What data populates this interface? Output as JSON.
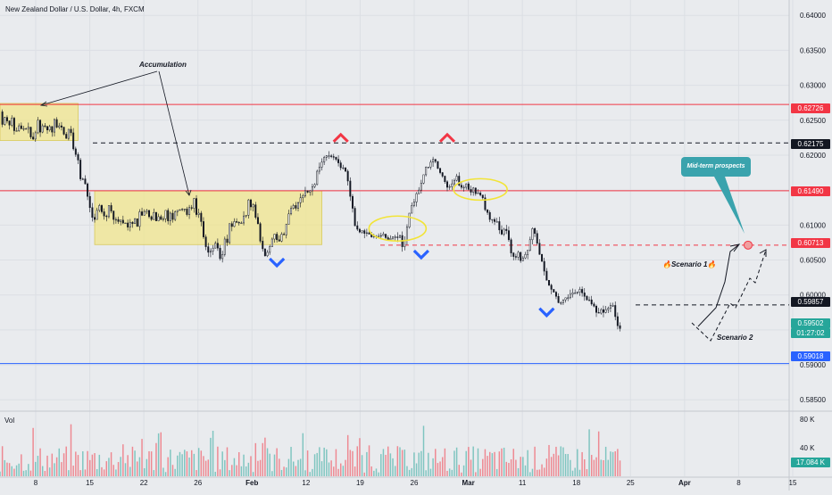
{
  "header": {
    "symbol_title": "New Zealand Dollar / U.S. Dollar, 4h, FXCM"
  },
  "volume_pane": {
    "label": "Vol",
    "tick_labels": [
      "80 K",
      "40 K"
    ],
    "current_badge": "17.084 K",
    "badge_color": "#26a69a"
  },
  "chart_data": {
    "type": "candlestick",
    "title": "",
    "x_tick_labels": [
      "8",
      "15",
      "22",
      "26",
      "Feb",
      "12",
      "19",
      "26",
      "Mar",
      "11",
      "18",
      "25",
      "Apr",
      "8",
      "15"
    ],
    "y_tick_labels": [
      "0.64000",
      "0.63500",
      "0.63000",
      "0.62500",
      "0.62000",
      "0.61500",
      "0.61000",
      "0.60500",
      "0.60000",
      "0.59500",
      "0.59000",
      "0.58500"
    ],
    "ylim": [
      0.5835,
      0.6422
    ],
    "price_path": {
      "x": [
        0,
        1,
        2,
        3,
        4,
        5,
        6,
        7,
        8,
        9,
        10,
        11,
        12,
        13,
        14,
        15,
        16,
        17,
        18,
        19,
        20,
        21,
        22,
        23,
        24,
        25,
        26,
        27,
        28,
        29,
        30,
        31,
        32,
        33,
        34,
        35,
        36,
        37,
        38,
        39,
        40,
        41,
        42,
        43,
        44,
        45,
        46,
        47,
        48,
        49,
        50,
        51,
        52,
        53,
        54,
        55,
        56,
        57,
        58,
        59,
        60,
        61,
        62,
        63,
        64,
        65,
        66,
        67,
        68,
        69,
        70,
        71,
        72,
        73,
        74,
        75,
        76,
        77,
        78,
        79,
        80,
        81,
        82,
        83,
        84,
        85,
        86,
        87,
        88,
        89,
        90,
        91,
        92,
        93,
        94,
        95,
        96,
        97,
        98,
        99,
        100,
        101,
        102,
        103,
        104,
        105,
        106,
        107,
        108,
        109,
        110,
        111,
        112,
        113,
        114,
        115,
        116,
        117,
        118,
        119,
        120,
        121,
        122,
        123,
        124,
        125,
        126,
        127,
        128,
        129,
        130,
        131,
        132,
        133,
        134,
        135,
        136,
        137,
        138,
        139,
        140,
        141,
        142,
        143,
        144,
        145,
        146,
        147,
        148,
        149,
        150,
        151,
        152,
        153,
        154,
        155,
        156,
        157,
        158,
        159,
        160,
        161,
        162,
        163,
        164,
        165,
        166,
        167,
        168,
        169,
        170,
        171,
        172,
        173,
        174,
        175,
        176,
        177,
        178,
        179,
        180,
        181,
        182,
        183,
        184,
        185,
        186,
        187,
        188,
        189,
        190,
        191,
        192,
        193,
        194,
        195,
        196,
        197,
        198,
        199,
        200,
        201,
        202,
        203,
        204,
        205,
        206,
        207,
        208,
        209,
        210,
        211,
        212,
        213,
        214,
        215,
        216,
        217,
        218,
        219,
        220,
        221,
        222,
        223,
        224,
        225,
        226,
        227,
        228,
        229,
        230,
        231,
        232,
        233,
        234,
        235,
        236,
        237,
        238,
        239,
        240,
        241,
        242,
        243,
        244,
        245,
        246,
        247,
        248,
        249,
        250,
        251,
        252,
        253,
        254,
        255,
        256,
        257,
        258,
        259,
        260,
        261,
        262,
        263,
        264,
        265,
        266,
        267,
        268,
        269,
        270,
        271,
        272,
        273,
        274,
        275,
        276,
        277,
        278,
        279,
        280,
        281,
        282,
        283,
        284,
        285,
        286,
        287,
        288,
        289,
        290,
        291,
        292,
        293,
        294,
        295
      ],
      "price": [
        0.6262,
        0.6244,
        0.6254,
        0.6249,
        0.6243,
        0.6253,
        0.6235,
        0.6235,
        0.6242,
        0.6238,
        0.6238,
        0.6238,
        0.624,
        0.6226,
        0.6223,
        0.6232,
        0.625,
        0.6233,
        0.6242,
        0.6241,
        0.6236,
        0.6241,
        0.6233,
        0.6251,
        0.624,
        0.6242,
        0.624,
        0.623,
        0.6224,
        0.6237,
        0.6232,
        0.6209,
        0.6201,
        0.6193,
        0.6166,
        0.6166,
        0.6159,
        0.6141,
        0.6125,
        0.6111,
        0.6108,
        0.6121,
        0.6128,
        0.6119,
        0.6113,
        0.6112,
        0.6128,
        0.612,
        0.6108,
        0.6108,
        0.6105,
        0.6107,
        0.6103,
        0.6103,
        0.6097,
        0.6104,
        0.6102,
        0.6109,
        0.6098,
        0.6119,
        0.6114,
        0.6119,
        0.6121,
        0.6112,
        0.6108,
        0.6118,
        0.6106,
        0.6112,
        0.6108,
        0.6109,
        0.6121,
        0.6106,
        0.6117,
        0.6108,
        0.6119,
        0.6121,
        0.6122,
        0.6123,
        0.6123,
        0.6115,
        0.6125,
        0.6124,
        0.6138,
        0.6115,
        0.6117,
        0.6105,
        0.6083,
        0.6069,
        0.6061,
        0.6063,
        0.6067,
        0.6074,
        0.6067,
        0.6052,
        0.6058,
        0.608,
        0.6075,
        0.6102,
        0.6098,
        0.6105,
        0.6104,
        0.6103,
        0.6103,
        0.6113,
        0.6114,
        0.6136,
        0.6126,
        0.6129,
        0.6111,
        0.6102,
        0.6077,
        0.6066,
        0.6056,
        0.6061,
        0.6069,
        0.608,
        0.6087,
        0.6079,
        0.6077,
        0.6087,
        0.6086,
        0.6101,
        0.6116,
        0.6124,
        0.6128,
        0.6124,
        0.6132,
        0.6139,
        0.6142,
        0.6149,
        0.6147,
        0.6149,
        0.6155,
        0.6158,
        0.6177,
        0.6183,
        0.619,
        0.6197,
        0.6199,
        0.6199,
        0.6198,
        0.6197,
        0.6194,
        0.6189,
        0.6182,
        0.6182,
        0.6177,
        0.6163,
        0.6141,
        0.6124,
        0.6099,
        0.6094,
        0.609,
        0.6092,
        0.6088,
        0.6089,
        0.6087,
        0.6083,
        0.6084,
        0.6084,
        0.6084,
        0.6085,
        0.6087,
        0.6082,
        0.6079,
        0.6081,
        0.6083,
        0.6083,
        0.6082,
        0.6085,
        0.6069,
        0.6078,
        0.6097,
        0.6117,
        0.6128,
        0.6133,
        0.6145,
        0.615,
        0.616,
        0.6172,
        0.6183,
        0.6183,
        0.619,
        0.6194,
        0.6191,
        0.6181,
        0.6175,
        0.617,
        0.6162,
        0.6154,
        0.6155,
        0.6159,
        0.6164,
        0.617,
        0.6157,
        0.6154,
        0.6154,
        0.6159,
        0.6151,
        0.6147,
        0.6153,
        0.6145,
        0.6146,
        0.6143,
        0.6139,
        0.6122,
        0.6118,
        0.6108,
        0.6108,
        0.6105,
        0.6105,
        0.6093,
        0.6087,
        0.6094,
        0.6092,
        0.6079,
        0.606,
        0.6055,
        0.6054,
        0.6061,
        0.6049,
        0.6053,
        0.6058,
        0.6064,
        0.6079,
        0.6095,
        0.6088,
        0.6074,
        0.6058,
        0.6048,
        0.6034,
        0.6021,
        0.6014,
        0.6008,
        0.6004,
        0.5998,
        0.5989,
        0.5989,
        0.5993,
        0.5996,
        0.5996,
        0.6001,
        0.6003,
        0.6003,
        0.6004,
        0.6008,
        0.6003,
        0.5998,
        0.5993,
        0.5993,
        0.5987,
        0.5984,
        0.5975,
        0.5974,
        0.5979,
        0.5975,
        0.5979,
        0.5981,
        0.5985,
        0.5985,
        0.5969,
        0.5956,
        0.5952
      ],
      "x_domain": [
        0,
        295
      ]
    },
    "horizontal_levels": [
      {
        "label": "0.62726",
        "price": 0.62726,
        "style": "solid",
        "color": "#f23645"
      },
      {
        "label": "0.62175",
        "price": 0.62175,
        "style": "dashed",
        "color": "#131722"
      },
      {
        "label": "0.61490",
        "price": 0.6149,
        "style": "solid",
        "color": "#f23645"
      },
      {
        "label": "0.60713",
        "price": 0.60713,
        "style": "dashed",
        "color": "#f23645"
      },
      {
        "label": "0.59857",
        "price": 0.59857,
        "style": "dashed",
        "color": "#131722"
      },
      {
        "label": "0.59018",
        "price": 0.59018,
        "style": "solid",
        "color": "#2962ff"
      }
    ],
    "current_price": {
      "label": "0.59502",
      "countdown": "01:27:02",
      "color": "#26a69a"
    },
    "annotations": {
      "accumulation": "Accumulation",
      "scenario1": "🔥Scenario 1🔥",
      "scenario2": "Scenario 2",
      "callout": "Mid-term prospects"
    },
    "accumulation_zones": [
      {
        "x_from": 0,
        "x_to": 33,
        "price_low": 0.6221,
        "price_high": 0.6274
      },
      {
        "x_from": 40,
        "x_to": 136,
        "price_low": 0.6072,
        "price_high": 0.6149
      }
    ],
    "ellipses": [
      {
        "x_center": 168,
        "price_center": 0.6095
      },
      {
        "x_center": 203,
        "price_center": 0.6151
      }
    ],
    "markers": [
      {
        "type": "top",
        "x": 144,
        "color": "#f23645"
      },
      {
        "type": "top",
        "x": 189,
        "color": "#f23645"
      },
      {
        "type": "bottom",
        "x": 117,
        "color": "#2962ff"
      },
      {
        "type": "bottom",
        "x": 178,
        "color": "#2962ff"
      },
      {
        "type": "bottom",
        "x": 231,
        "color": "#2962ff"
      }
    ],
    "colors": {
      "up": "#131722",
      "down": "#131722",
      "volume_up": "#26a69a",
      "volume_down": "#f23645"
    },
    "grid": true
  }
}
